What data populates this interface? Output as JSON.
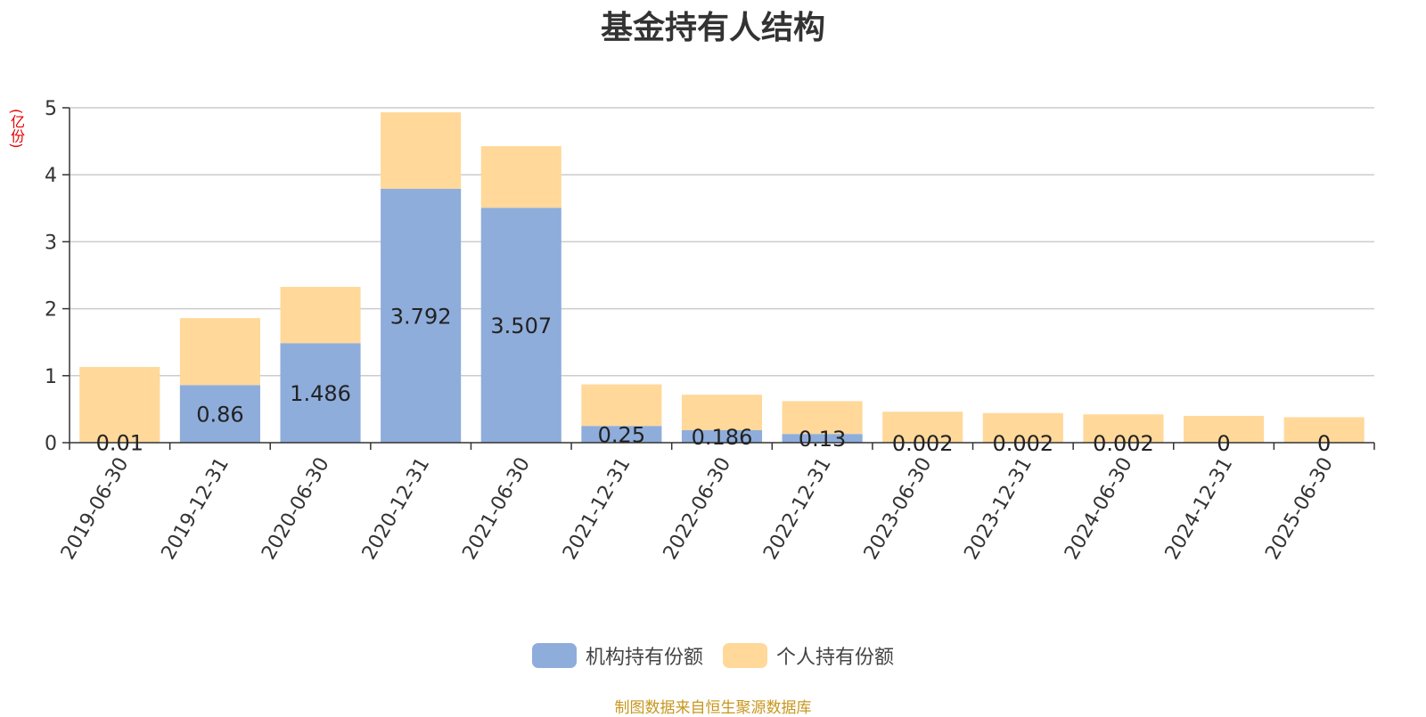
{
  "colors": {
    "institution": "#8eaddb",
    "individual": "#ffd89a",
    "grid": "#cccccc",
    "axis": "#333333",
    "label": "#222222"
  },
  "chart_data": {
    "type": "bar",
    "stacked": true,
    "title": "基金持有人结构",
    "y_unit": "(亿份)",
    "ylim": [
      0,
      5
    ],
    "yticks": [
      0,
      1,
      2,
      3,
      4,
      5
    ],
    "grid": true,
    "legend_position": "bottom-center",
    "categories": [
      "2019-06-30",
      "2019-12-31",
      "2020-06-30",
      "2020-12-31",
      "2021-06-30",
      "2021-12-31",
      "2022-06-30",
      "2022-12-31",
      "2023-06-30",
      "2023-12-31",
      "2024-06-30",
      "2024-12-31",
      "2025-06-30"
    ],
    "series": [
      {
        "name": "机构持有份额",
        "values": [
          0.01,
          0.86,
          1.486,
          3.792,
          3.507,
          0.25,
          0.186,
          0.13,
          0.002,
          0.002,
          0.002,
          0,
          0
        ],
        "labels": [
          "0.01",
          "0.86",
          "1.486",
          "3.792",
          "3.507",
          "0.25",
          "0.186",
          "0.13",
          "0.002",
          "0.002",
          "0.002",
          "0",
          "0"
        ]
      },
      {
        "name": "个人持有份额",
        "values": [
          1.12,
          1.0,
          0.84,
          1.14,
          0.92,
          0.62,
          0.53,
          0.49,
          0.46,
          0.44,
          0.42,
          0.4,
          0.38
        ]
      }
    ]
  },
  "source_note": "制图数据来自恒生聚源数据库"
}
